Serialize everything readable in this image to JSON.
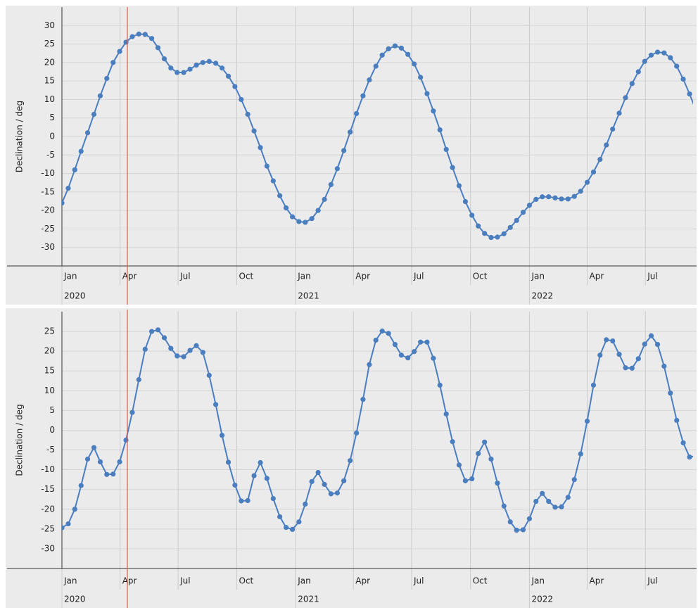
{
  "chart_data": [
    {
      "type": "line",
      "ylabel": "Declination / deg",
      "color": "#4a7ebf",
      "marker_x": 2020.28,
      "marker_color": "#e8574a",
      "xlim": [
        2020,
        2022.7
      ],
      "ylim": [
        -35,
        35
      ],
      "grid": true,
      "xticks": [
        {
          "value": 2020,
          "label": "Jan"
        },
        {
          "value": 2020.249,
          "label": "Apr"
        },
        {
          "value": 2020.497,
          "label": "Jul"
        },
        {
          "value": 2020.748,
          "label": "Oct"
        },
        {
          "value": 2021,
          "label": "Jan"
        },
        {
          "value": 2021.247,
          "label": "Apr"
        },
        {
          "value": 2021.496,
          "label": "Jul"
        },
        {
          "value": 2021.748,
          "label": "Oct"
        },
        {
          "value": 2022,
          "label": "Jan"
        },
        {
          "value": 2022.247,
          "label": "Apr"
        },
        {
          "value": 2022.496,
          "label": "Jul"
        }
      ],
      "year_ticks": [
        2020,
        2021,
        2022
      ],
      "yticks": [
        30,
        25,
        20,
        15,
        10,
        5,
        0,
        -5,
        -10,
        -15,
        -20,
        -25,
        -30
      ],
      "x": [
        2020,
        2020.027,
        2020.055,
        2020.082,
        2020.11,
        2020.137,
        2020.164,
        2020.192,
        2020.219,
        2020.247,
        2020.274,
        2020.301,
        2020.329,
        2020.356,
        2020.384,
        2020.411,
        2020.438,
        2020.466,
        2020.493,
        2020.521,
        2020.548,
        2020.575,
        2020.603,
        2020.63,
        2020.658,
        2020.685,
        2020.712,
        2020.74,
        2020.767,
        2020.795,
        2020.822,
        2020.849,
        2020.877,
        2020.904,
        2020.932,
        2020.959,
        2020.986,
        2021.014,
        2021.041,
        2021.069,
        2021.096,
        2021.123,
        2021.151,
        2021.178,
        2021.206,
        2021.233,
        2021.26,
        2021.288,
        2021.315,
        2021.343,
        2021.37,
        2021.397,
        2021.425,
        2021.452,
        2021.48,
        2021.507,
        2021.534,
        2021.562,
        2021.589,
        2021.617,
        2021.644,
        2021.671,
        2021.699,
        2021.726,
        2021.754,
        2021.781,
        2021.808,
        2021.836,
        2021.863,
        2021.891,
        2021.918,
        2021.945,
        2021.973,
        2022,
        2022.028,
        2022.055,
        2022.082,
        2022.11,
        2022.137,
        2022.165,
        2022.192,
        2022.219,
        2022.247,
        2022.274,
        2022.302,
        2022.329,
        2022.356,
        2022.384,
        2022.411,
        2022.439,
        2022.466,
        2022.493,
        2022.521,
        2022.548,
        2022.576,
        2022.603,
        2022.63,
        2022.658,
        2022.685,
        2022.713
      ],
      "values": [
        -18,
        -14,
        -9,
        -4,
        1,
        6,
        11,
        15.7,
        20,
        23,
        25.5,
        27,
        27.7,
        27.6,
        26.5,
        24,
        21,
        18.5,
        17.3,
        17.3,
        18.2,
        19.3,
        20,
        20.3,
        19.8,
        18.5,
        16.3,
        13.5,
        10,
        6,
        1.5,
        -3,
        -8,
        -12,
        -16,
        -19.3,
        -21.7,
        -23,
        -23.2,
        -22.2,
        -20,
        -17,
        -13,
        -8.7,
        -3.8,
        1.2,
        6.2,
        11,
        15.3,
        19,
        22,
        23.7,
        24.5,
        23.9,
        22.2,
        19.6,
        16,
        11.6,
        6.9,
        1.8,
        -3.5,
        -8.4,
        -13.3,
        -17.6,
        -21.3,
        -24.2,
        -26.2,
        -27.3,
        -27.2,
        -26.3,
        -24.6,
        -22.7,
        -20.5,
        -18.6,
        -17,
        -16.3,
        -16.3,
        -16.6,
        -16.9,
        -16.9,
        -16.2,
        -14.8,
        -12.4,
        -9.6,
        -6.2,
        -2.3,
        2,
        6.3,
        10.5,
        14.3,
        17.5,
        20.3,
        22,
        22.8,
        22.6,
        21.3,
        19,
        15.5,
        11.5,
        7
      ]
    },
    {
      "type": "line",
      "ylabel": "Declination / deg",
      "color": "#4a7ebf",
      "marker_x": 2020.28,
      "marker_color": "#e8574a",
      "xlim": [
        2020,
        2022.7
      ],
      "ylim": [
        -35,
        30
      ],
      "grid": true,
      "xticks": [
        {
          "value": 2020,
          "label": "Jan"
        },
        {
          "value": 2020.249,
          "label": "Apr"
        },
        {
          "value": 2020.497,
          "label": "Jul"
        },
        {
          "value": 2020.748,
          "label": "Oct"
        },
        {
          "value": 2021,
          "label": "Jan"
        },
        {
          "value": 2021.247,
          "label": "Apr"
        },
        {
          "value": 2021.496,
          "label": "Jul"
        },
        {
          "value": 2021.748,
          "label": "Oct"
        },
        {
          "value": 2022,
          "label": "Jan"
        },
        {
          "value": 2022.247,
          "label": "Apr"
        },
        {
          "value": 2022.496,
          "label": "Jul"
        }
      ],
      "year_ticks": [
        2020,
        2021,
        2022
      ],
      "yticks": [
        25,
        20,
        15,
        10,
        5,
        0,
        -5,
        -10,
        -15,
        -20,
        -25,
        -30
      ],
      "x": [
        2020,
        2020.027,
        2020.055,
        2020.082,
        2020.11,
        2020.137,
        2020.164,
        2020.192,
        2020.219,
        2020.247,
        2020.274,
        2020.301,
        2020.329,
        2020.356,
        2020.384,
        2020.411,
        2020.438,
        2020.466,
        2020.493,
        2020.521,
        2020.548,
        2020.575,
        2020.603,
        2020.63,
        2020.658,
        2020.685,
        2020.712,
        2020.74,
        2020.767,
        2020.795,
        2020.822,
        2020.849,
        2020.877,
        2020.904,
        2020.932,
        2020.959,
        2020.986,
        2021.014,
        2021.041,
        2021.069,
        2021.096,
        2021.123,
        2021.151,
        2021.178,
        2021.206,
        2021.233,
        2021.26,
        2021.288,
        2021.315,
        2021.343,
        2021.37,
        2021.397,
        2021.425,
        2021.452,
        2021.48,
        2021.507,
        2021.534,
        2021.562,
        2021.589,
        2021.617,
        2021.644,
        2021.671,
        2021.699,
        2021.726,
        2021.754,
        2021.781,
        2021.808,
        2021.836,
        2021.863,
        2021.891,
        2021.918,
        2021.945,
        2021.973,
        2022,
        2022.028,
        2022.055,
        2022.082,
        2022.11,
        2022.137,
        2022.165,
        2022.192,
        2022.219,
        2022.247,
        2022.274,
        2022.302,
        2022.329,
        2022.356,
        2022.384,
        2022.411,
        2022.439,
        2022.466,
        2022.493,
        2022.521,
        2022.548,
        2022.576,
        2022.603,
        2022.63,
        2022.658,
        2022.685,
        2022.713
      ],
      "values": [
        -24.7,
        -23.7,
        -20,
        -14,
        -7.3,
        -4.4,
        -8,
        -11.2,
        -11.1,
        -8,
        -2.5,
        4.5,
        12.8,
        20.5,
        25,
        25.4,
        23.4,
        20.7,
        18.8,
        18.6,
        20.2,
        21.4,
        19.7,
        13.9,
        6.5,
        -1.3,
        -8.1,
        -13.9,
        -17.9,
        -17.8,
        -11.5,
        -8.2,
        -12.2,
        -17.3,
        -21.9,
        -24.6,
        -25.1,
        -23.2,
        -18.7,
        -13,
        -10.7,
        -13.7,
        -16.1,
        -15.9,
        -12.8,
        -7.7,
        -0.7,
        7.8,
        16.6,
        22.8,
        25.1,
        24.5,
        21.7,
        19,
        18.3,
        19.9,
        22.3,
        22.3,
        18.2,
        11.4,
        4.1,
        -2.9,
        -8.8,
        -12.8,
        -12.3,
        -5.9,
        -3,
        -7.3,
        -13.4,
        -19.2,
        -23.2,
        -25.3,
        -25.2,
        -22.4,
        -18,
        -16,
        -18,
        -19.5,
        -19.4,
        -17,
        -12.5,
        -6,
        2.3,
        11.4,
        19,
        22.9,
        22.6,
        19.2,
        15.8,
        15.7,
        18.1,
        21.8,
        23.9,
        21.7,
        16.2,
        9.4,
        2.5,
        -3.2,
        -6.8,
        -6.5
      ]
    }
  ]
}
